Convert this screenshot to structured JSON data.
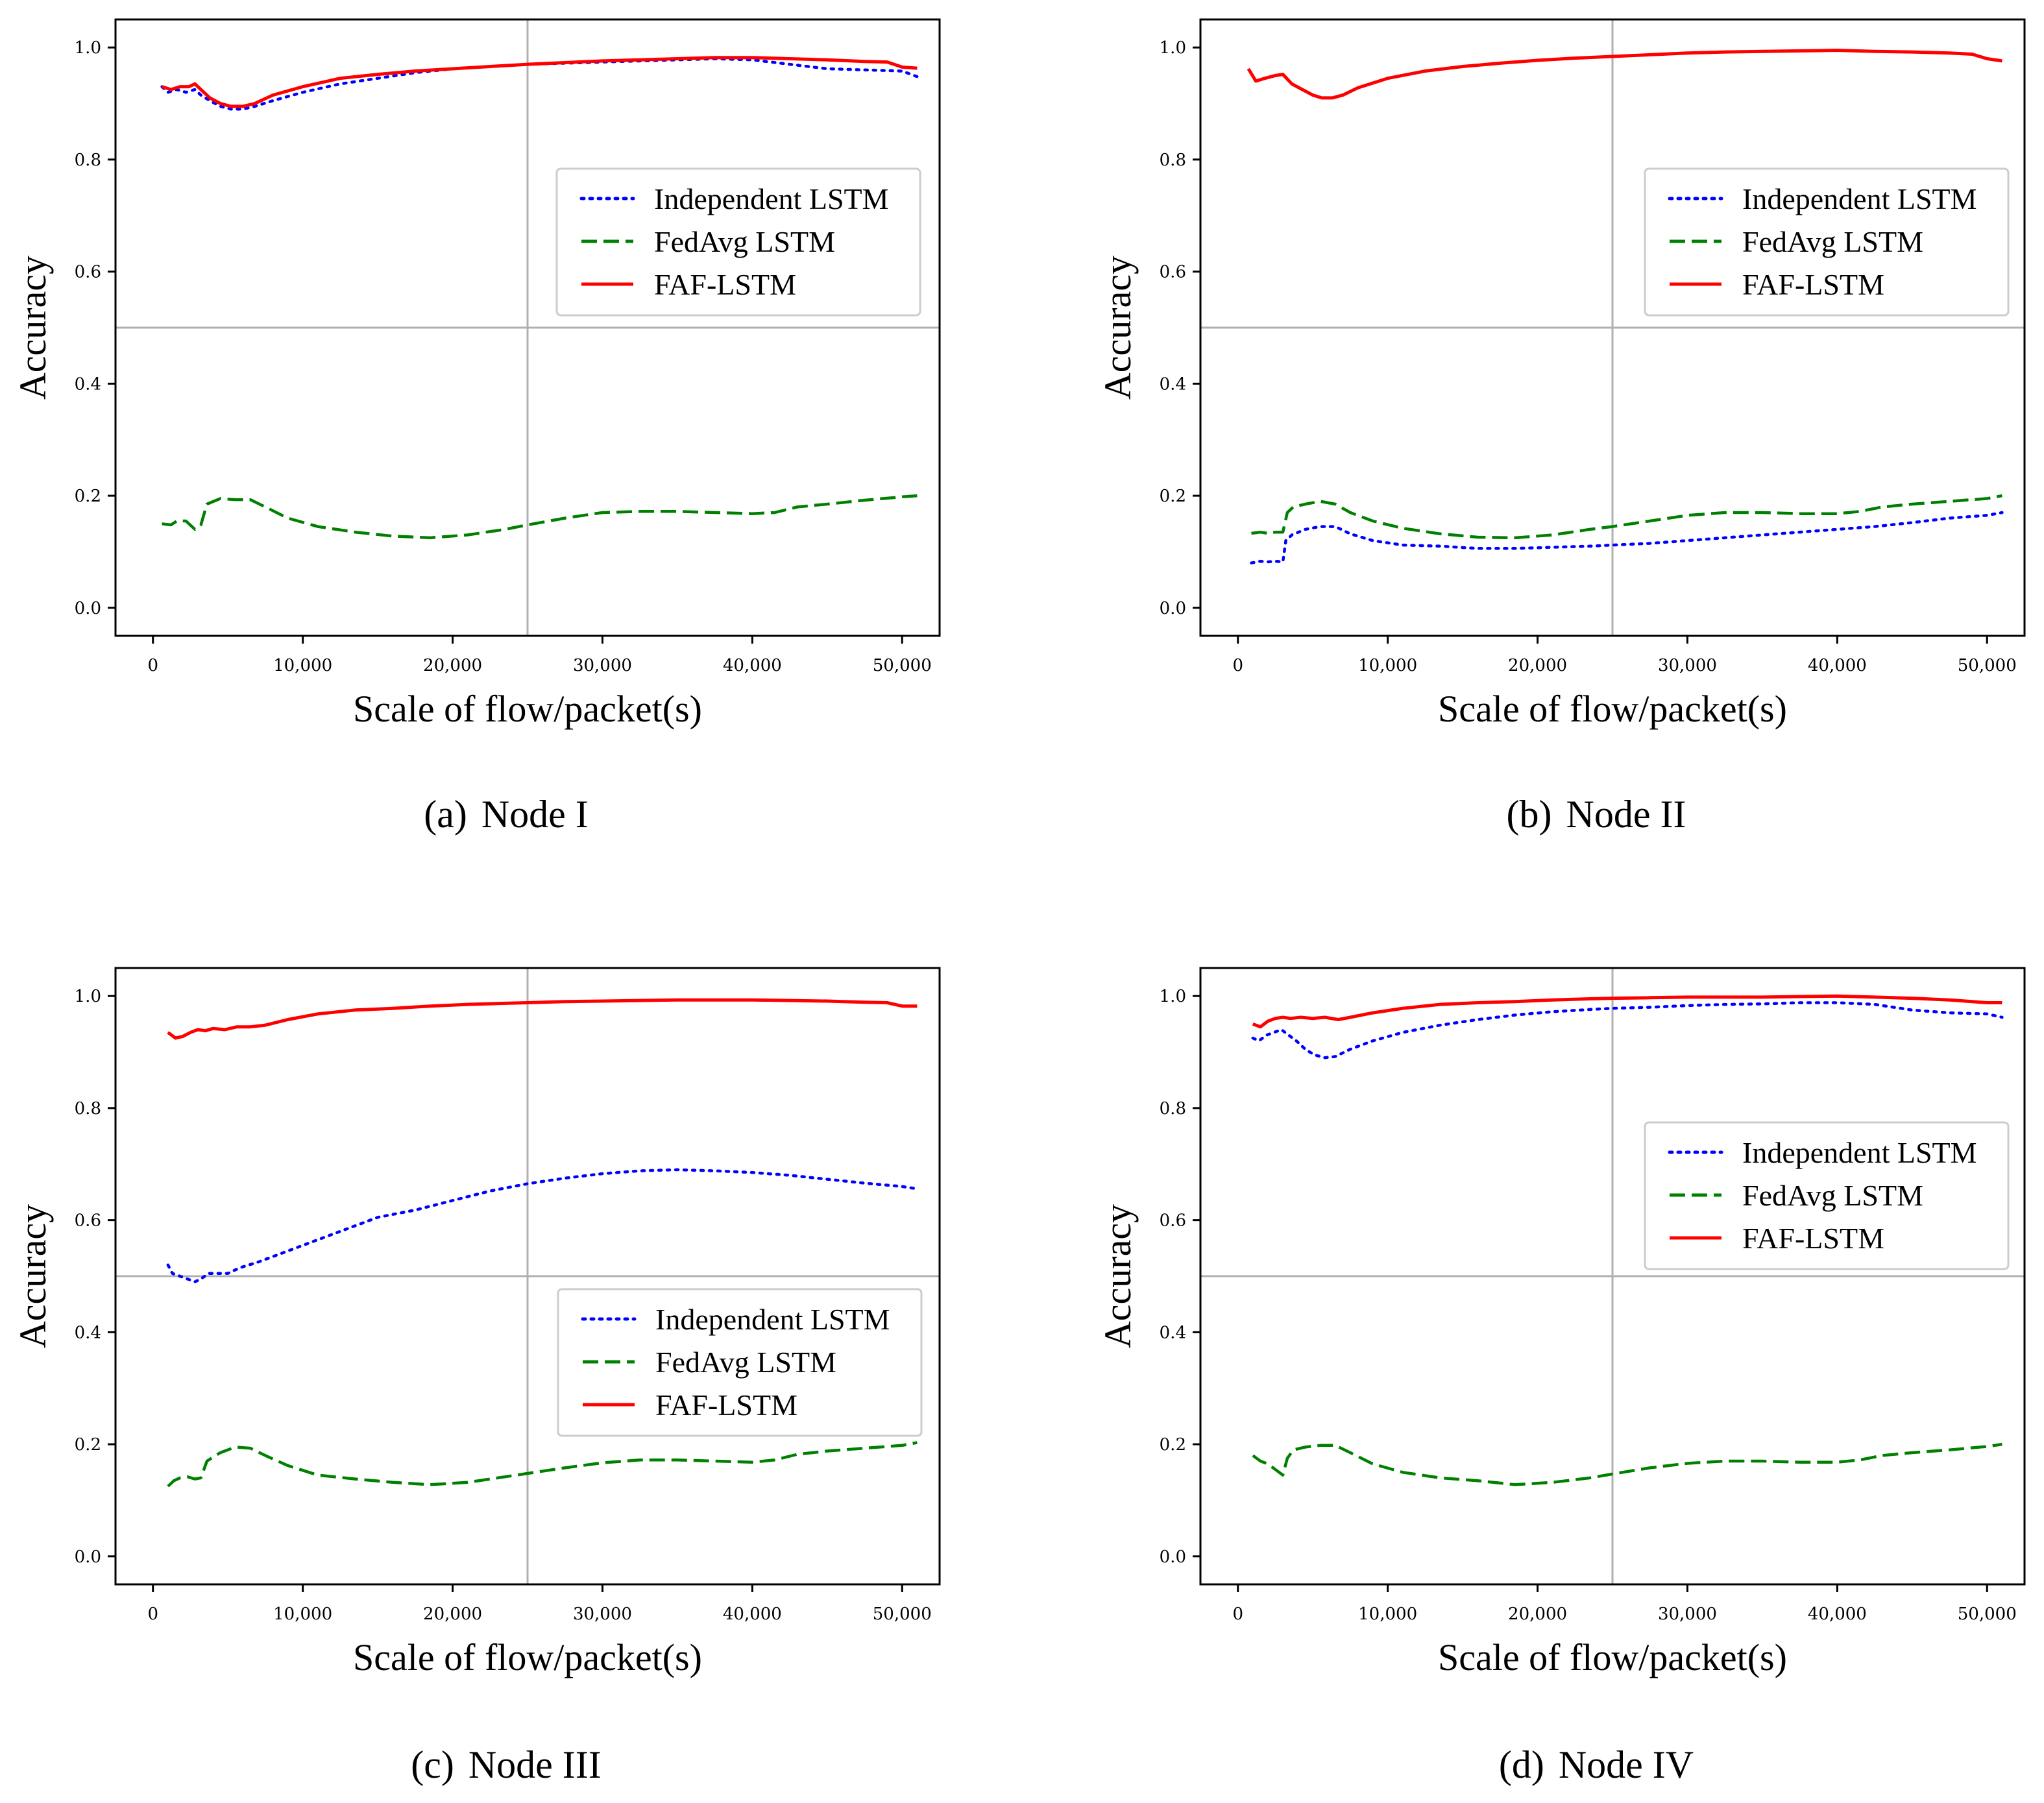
{
  "chart_data": [
    {
      "type": "line",
      "caption_tag": "(a)",
      "caption_text": "Node I",
      "xlabel": "Scale of flow/packet(s)",
      "ylabel": "Accuracy",
      "xlim": [
        -2500,
        52500
      ],
      "ylim": [
        -0.05,
        1.05
      ],
      "xticks": [
        0,
        10000,
        20000,
        30000,
        40000,
        50000
      ],
      "xtick_labels": [
        "0",
        "10,000",
        "20,000",
        "30,000",
        "40,000",
        "50,000"
      ],
      "yticks": [
        0.0,
        0.2,
        0.4,
        0.6,
        0.8,
        1.0
      ],
      "ytick_labels": [
        "0.0",
        "0.2",
        "0.4",
        "0.6",
        "0.8",
        "1.0"
      ],
      "reference_lines": {
        "x": 25000,
        "y": 0.5
      },
      "legend_position": "center-right",
      "series": [
        {
          "name": "Independent LSTM",
          "style": "dotted",
          "color": "#0000ff",
          "x": [
            600,
            1000,
            1600,
            2200,
            2800,
            3200,
            3800,
            4500,
            5200,
            6000,
            6800,
            8000,
            10000,
            12500,
            15000,
            17500,
            20000,
            22500,
            25000,
            27500,
            30000,
            32500,
            35000,
            37500,
            40000,
            42500,
            45000,
            47500,
            50000,
            51000
          ],
          "y": [
            0.93,
            0.92,
            0.925,
            0.92,
            0.925,
            0.915,
            0.905,
            0.895,
            0.89,
            0.89,
            0.895,
            0.905,
            0.92,
            0.935,
            0.945,
            0.955,
            0.962,
            0.966,
            0.97,
            0.972,
            0.974,
            0.976,
            0.978,
            0.98,
            0.978,
            0.97,
            0.962,
            0.96,
            0.958,
            0.948
          ]
        },
        {
          "name": "FedAvg LSTM",
          "style": "dashed",
          "color": "#008000",
          "x": [
            600,
            1200,
            1600,
            2200,
            2800,
            3200,
            3600,
            4500,
            5500,
            6500,
            7500,
            9000,
            11000,
            13500,
            16000,
            18500,
            21000,
            23500,
            25000,
            27500,
            30000,
            32500,
            35000,
            37500,
            40000,
            41500,
            43000,
            45000,
            47500,
            50000,
            51000
          ],
          "y": [
            0.15,
            0.148,
            0.155,
            0.155,
            0.14,
            0.148,
            0.185,
            0.195,
            0.193,
            0.193,
            0.18,
            0.16,
            0.145,
            0.135,
            0.128,
            0.125,
            0.13,
            0.14,
            0.148,
            0.16,
            0.17,
            0.172,
            0.172,
            0.17,
            0.168,
            0.17,
            0.18,
            0.185,
            0.192,
            0.198,
            0.2
          ]
        },
        {
          "name": "FAF-LSTM",
          "style": "solid",
          "color": "#ff0000",
          "x": [
            600,
            1200,
            1800,
            2400,
            2800,
            3200,
            3800,
            4500,
            5200,
            6000,
            6800,
            8000,
            10000,
            12500,
            15000,
            17500,
            20000,
            22500,
            25000,
            27500,
            30000,
            32500,
            35000,
            37500,
            40000,
            42500,
            45000,
            47500,
            49000,
            50000,
            51000
          ],
          "y": [
            0.93,
            0.925,
            0.93,
            0.93,
            0.935,
            0.925,
            0.91,
            0.9,
            0.895,
            0.895,
            0.9,
            0.915,
            0.93,
            0.945,
            0.952,
            0.958,
            0.962,
            0.966,
            0.97,
            0.973,
            0.976,
            0.978,
            0.98,
            0.982,
            0.982,
            0.98,
            0.978,
            0.975,
            0.974,
            0.965,
            0.963
          ]
        }
      ]
    },
    {
      "type": "line",
      "caption_tag": "(b)",
      "caption_text": "Node II",
      "xlabel": "Scale of flow/packet(s)",
      "ylabel": "Accuracy",
      "xlim": [
        -2500,
        52500
      ],
      "ylim": [
        -0.05,
        1.05
      ],
      "xticks": [
        0,
        10000,
        20000,
        30000,
        40000,
        50000
      ],
      "xtick_labels": [
        "0",
        "10,000",
        "20,000",
        "30,000",
        "40,000",
        "50,000"
      ],
      "yticks": [
        0.0,
        0.2,
        0.4,
        0.6,
        0.8,
        1.0
      ],
      "ytick_labels": [
        "0.0",
        "0.2",
        "0.4",
        "0.6",
        "0.8",
        "1.0"
      ],
      "reference_lines": {
        "x": 25000,
        "y": 0.5
      },
      "legend_position": "center-right",
      "series": [
        {
          "name": "Independent LSTM",
          "style": "dotted",
          "color": "#0000ff",
          "x": [
            900,
            1500,
            2000,
            2500,
            3000,
            3200,
            3600,
            4500,
            5500,
            6500,
            7500,
            9000,
            11000,
            13500,
            16000,
            18500,
            21000,
            23500,
            25000,
            27500,
            30000,
            32500,
            35000,
            37500,
            40000,
            42500,
            45000,
            47500,
            50000,
            51000
          ],
          "y": [
            0.08,
            0.083,
            0.082,
            0.083,
            0.082,
            0.12,
            0.13,
            0.14,
            0.145,
            0.145,
            0.132,
            0.12,
            0.112,
            0.11,
            0.106,
            0.106,
            0.108,
            0.11,
            0.112,
            0.115,
            0.12,
            0.125,
            0.13,
            0.135,
            0.14,
            0.145,
            0.152,
            0.16,
            0.165,
            0.17
          ]
        },
        {
          "name": "FedAvg LSTM",
          "style": "dashed",
          "color": "#008000",
          "x": [
            900,
            1500,
            2000,
            2500,
            3000,
            3300,
            3700,
            4500,
            5500,
            6500,
            7500,
            9000,
            11000,
            13500,
            16000,
            18500,
            21000,
            23500,
            25000,
            27500,
            30000,
            32500,
            35000,
            37500,
            40000,
            41500,
            43000,
            45000,
            47500,
            50000,
            51000
          ],
          "y": [
            0.133,
            0.135,
            0.133,
            0.135,
            0.135,
            0.17,
            0.18,
            0.185,
            0.19,
            0.185,
            0.17,
            0.155,
            0.142,
            0.132,
            0.126,
            0.125,
            0.13,
            0.14,
            0.145,
            0.155,
            0.165,
            0.17,
            0.17,
            0.168,
            0.168,
            0.172,
            0.18,
            0.185,
            0.19,
            0.195,
            0.2
          ]
        },
        {
          "name": "FAF-LSTM",
          "style": "solid",
          "color": "#ff0000",
          "x": [
            700,
            1200,
            1800,
            2500,
            3000,
            3600,
            4300,
            5000,
            5600,
            6300,
            7000,
            8000,
            10000,
            12500,
            15000,
            17500,
            20000,
            22500,
            25000,
            27500,
            30000,
            32500,
            35000,
            37500,
            40000,
            42500,
            45000,
            47500,
            49000,
            50000,
            51000
          ],
          "y": [
            0.962,
            0.94,
            0.945,
            0.95,
            0.952,
            0.935,
            0.925,
            0.915,
            0.91,
            0.91,
            0.915,
            0.928,
            0.945,
            0.958,
            0.966,
            0.972,
            0.977,
            0.981,
            0.984,
            0.987,
            0.99,
            0.992,
            0.993,
            0.994,
            0.995,
            0.993,
            0.992,
            0.99,
            0.988,
            0.98,
            0.976
          ]
        }
      ]
    },
    {
      "type": "line",
      "caption_tag": "(c)",
      "caption_text": "Node III",
      "xlabel": "Scale of flow/packet(s)",
      "ylabel": "Accuracy",
      "xlim": [
        -2500,
        52500
      ],
      "ylim": [
        -0.05,
        1.05
      ],
      "xticks": [
        0,
        10000,
        20000,
        30000,
        40000,
        50000
      ],
      "xtick_labels": [
        "0",
        "10,000",
        "20,000",
        "30,000",
        "40,000",
        "50,000"
      ],
      "yticks": [
        0.0,
        0.2,
        0.4,
        0.6,
        0.8,
        1.0
      ],
      "ytick_labels": [
        "0.0",
        "0.2",
        "0.4",
        "0.6",
        "0.8",
        "1.0"
      ],
      "reference_lines": {
        "x": 25000,
        "y": 0.5
      },
      "legend_position": "lower-right",
      "series": [
        {
          "name": "Independent LSTM",
          "style": "dotted",
          "color": "#0000ff",
          "x": [
            1000,
            1300,
            1800,
            2300,
            2800,
            3200,
            3700,
            4300,
            5000,
            5800,
            7000,
            8500,
            10000,
            12500,
            15000,
            17500,
            20000,
            22500,
            25000,
            27500,
            30000,
            32500,
            35000,
            37500,
            40000,
            42500,
            45000,
            47500,
            50000,
            51000
          ],
          "y": [
            0.52,
            0.505,
            0.5,
            0.495,
            0.49,
            0.495,
            0.505,
            0.505,
            0.505,
            0.515,
            0.525,
            0.54,
            0.555,
            0.58,
            0.605,
            0.618,
            0.635,
            0.652,
            0.665,
            0.675,
            0.683,
            0.688,
            0.69,
            0.688,
            0.685,
            0.68,
            0.673,
            0.666,
            0.66,
            0.656
          ]
        },
        {
          "name": "FedAvg LSTM",
          "style": "dashed",
          "color": "#008000",
          "x": [
            1000,
            1400,
            1800,
            2300,
            2800,
            3200,
            3600,
            4500,
            5500,
            6500,
            7500,
            9000,
            11000,
            13500,
            16000,
            18500,
            21000,
            23500,
            25000,
            27500,
            30000,
            32500,
            35000,
            37500,
            40000,
            41500,
            43000,
            45000,
            47500,
            50000,
            51000
          ],
          "y": [
            0.125,
            0.135,
            0.14,
            0.142,
            0.138,
            0.14,
            0.17,
            0.185,
            0.195,
            0.193,
            0.18,
            0.162,
            0.145,
            0.138,
            0.132,
            0.128,
            0.132,
            0.142,
            0.148,
            0.158,
            0.167,
            0.172,
            0.172,
            0.17,
            0.168,
            0.172,
            0.182,
            0.188,
            0.193,
            0.198,
            0.203
          ]
        },
        {
          "name": "FAF-LSTM",
          "style": "solid",
          "color": "#ff0000",
          "x": [
            1000,
            1500,
            2000,
            2500,
            3000,
            3500,
            4000,
            4800,
            5600,
            6500,
            7500,
            9000,
            11000,
            13500,
            16000,
            18500,
            21000,
            23500,
            25000,
            27500,
            30000,
            32500,
            35000,
            37500,
            40000,
            42500,
            45000,
            47500,
            49000,
            50000,
            51000
          ],
          "y": [
            0.935,
            0.925,
            0.928,
            0.935,
            0.94,
            0.938,
            0.942,
            0.94,
            0.945,
            0.945,
            0.948,
            0.958,
            0.968,
            0.975,
            0.978,
            0.982,
            0.985,
            0.987,
            0.988,
            0.99,
            0.991,
            0.992,
            0.993,
            0.993,
            0.993,
            0.992,
            0.991,
            0.989,
            0.988,
            0.982,
            0.982
          ]
        }
      ]
    },
    {
      "type": "line",
      "caption_tag": "(d)",
      "caption_text": "Node IV",
      "xlabel": "Scale of flow/packet(s)",
      "ylabel": "Accuracy",
      "xlim": [
        -2500,
        52500
      ],
      "ylim": [
        -0.05,
        1.05
      ],
      "xticks": [
        0,
        10000,
        20000,
        30000,
        40000,
        50000
      ],
      "xtick_labels": [
        "0",
        "10,000",
        "20,000",
        "30,000",
        "40,000",
        "50,000"
      ],
      "yticks": [
        0.0,
        0.2,
        0.4,
        0.6,
        0.8,
        1.0
      ],
      "ytick_labels": [
        "0.0",
        "0.2",
        "0.4",
        "0.6",
        "0.8",
        "1.0"
      ],
      "reference_lines": {
        "x": 25000,
        "y": 0.5
      },
      "legend_position": "center-right",
      "series": [
        {
          "name": "Independent LSTM",
          "style": "dotted",
          "color": "#0000ff",
          "x": [
            1000,
            1400,
            1900,
            2400,
            2900,
            3400,
            3900,
            4500,
            5100,
            5800,
            6500,
            7500,
            9000,
            11000,
            13500,
            16000,
            18500,
            21000,
            23500,
            25000,
            27500,
            30000,
            32500,
            35000,
            37500,
            40000,
            42500,
            45000,
            47500,
            50000,
            51000
          ],
          "y": [
            0.925,
            0.92,
            0.93,
            0.935,
            0.94,
            0.93,
            0.92,
            0.905,
            0.895,
            0.89,
            0.892,
            0.905,
            0.92,
            0.935,
            0.948,
            0.958,
            0.966,
            0.972,
            0.976,
            0.978,
            0.98,
            0.983,
            0.985,
            0.986,
            0.988,
            0.988,
            0.985,
            0.975,
            0.97,
            0.968,
            0.962
          ]
        },
        {
          "name": "FedAvg LSTM",
          "style": "dashed",
          "color": "#008000",
          "x": [
            1000,
            1500,
            2000,
            2500,
            3000,
            3300,
            3700,
            4500,
            5500,
            6500,
            7500,
            9000,
            11000,
            13500,
            16000,
            18500,
            21000,
            23500,
            25000,
            27500,
            30000,
            32500,
            35000,
            37500,
            40000,
            41500,
            43000,
            45000,
            47500,
            50000,
            51000
          ],
          "y": [
            0.18,
            0.17,
            0.165,
            0.155,
            0.145,
            0.175,
            0.19,
            0.195,
            0.198,
            0.198,
            0.185,
            0.165,
            0.15,
            0.14,
            0.135,
            0.128,
            0.132,
            0.14,
            0.147,
            0.158,
            0.166,
            0.17,
            0.17,
            0.168,
            0.168,
            0.172,
            0.18,
            0.185,
            0.19,
            0.196,
            0.2
          ]
        },
        {
          "name": "FAF-LSTM",
          "style": "solid",
          "color": "#ff0000",
          "x": [
            1000,
            1500,
            2000,
            2500,
            3000,
            3500,
            4200,
            5000,
            5800,
            6700,
            7500,
            9000,
            11000,
            13500,
            16000,
            18500,
            21000,
            23500,
            25000,
            27500,
            30000,
            32500,
            35000,
            37500,
            40000,
            42500,
            45000,
            47500,
            49000,
            50000,
            51000
          ],
          "y": [
            0.95,
            0.945,
            0.955,
            0.96,
            0.962,
            0.96,
            0.962,
            0.96,
            0.962,
            0.958,
            0.962,
            0.97,
            0.978,
            0.985,
            0.988,
            0.99,
            0.993,
            0.995,
            0.996,
            0.997,
            0.998,
            0.998,
            0.998,
            0.999,
            1.0,
            0.998,
            0.996,
            0.993,
            0.99,
            0.988,
            0.988
          ]
        }
      ]
    }
  ]
}
